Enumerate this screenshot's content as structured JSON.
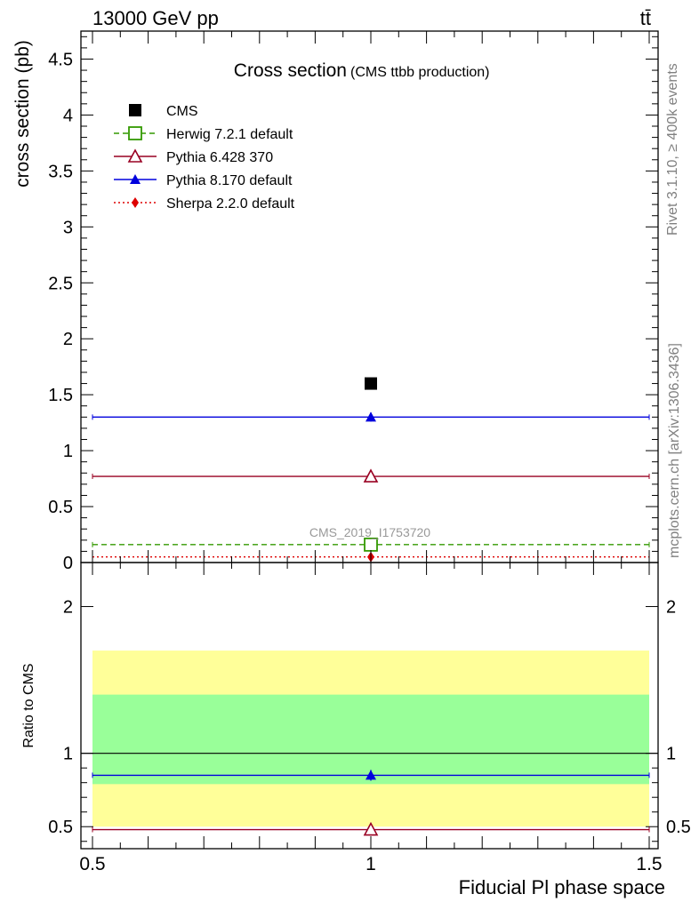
{
  "header": {
    "left_label": "13000 GeV pp",
    "right_label": "tt̄"
  },
  "side_text": {
    "rivet": "Rivet 3.1.10, ≥ 400k events",
    "mcplots": "mcplots.cern.ch [arXiv:1306.3436]"
  },
  "chart_data": [
    {
      "type": "scatter",
      "title": "Cross section",
      "subtitle": "(CMS ttbb production)",
      "ylabel": "cross section (pb)",
      "analysis_label": "CMS_2019_I1753720",
      "xlim": [
        0.5,
        1.5
      ],
      "ylim": [
        0,
        4.75
      ],
      "yticks": [
        0,
        0.5,
        1,
        1.5,
        2,
        2.5,
        3,
        3.5,
        4,
        4.5
      ],
      "ytick_labels": [
        "0",
        "0.5",
        "1",
        "1.5",
        "2",
        "2.5",
        "3",
        "3.5",
        "4",
        "4.5"
      ],
      "legend_position": "top-left",
      "series": [
        {
          "name": "CMS",
          "x": [
            1
          ],
          "y": [
            1.6
          ],
          "marker": "square",
          "color": "#000000"
        },
        {
          "name": "Herwig 7.2.1 default",
          "x": [
            1
          ],
          "y": [
            0.16
          ],
          "marker": "open-square",
          "line": "dashed",
          "color": "#339900"
        },
        {
          "name": "Pythia 6.428 370",
          "x": [
            1
          ],
          "y": [
            0.77
          ],
          "marker": "open-triangle",
          "line": "solid",
          "color": "#990022"
        },
        {
          "name": "Pythia 8.170 default",
          "x": [
            1
          ],
          "y": [
            1.3
          ],
          "marker": "triangle",
          "line": "solid",
          "color": "#0000dd"
        },
        {
          "name": "Sherpa 2.2.0 default",
          "x": [
            1
          ],
          "y": [
            0.05
          ],
          "marker": "diamond",
          "line": "dotted",
          "color": "#dd0000"
        }
      ]
    },
    {
      "type": "scatter",
      "ylabel": "Ratio to CMS",
      "xlabel": "Fiducial Pl phase space",
      "xlim": [
        0.5,
        1.5
      ],
      "ylim": [
        0.35,
        2.3
      ],
      "yticks": [
        0.5,
        1,
        2
      ],
      "ytick_labels": [
        "0.5",
        "1",
        "2"
      ],
      "xticks": [
        0.5,
        1,
        1.5
      ],
      "xtick_labels": [
        "0.5",
        "1",
        "1.5"
      ],
      "bands": [
        {
          "lower": 0.5,
          "upper": 1.7,
          "color": "#ffff99"
        },
        {
          "lower": 0.79,
          "upper": 1.4,
          "color": "#99ff99"
        }
      ],
      "reference_line": 1,
      "series": [
        {
          "name": "Pythia 8.170 default",
          "x": [
            1
          ],
          "y": [
            0.85
          ],
          "marker": "triangle",
          "color": "#0000dd"
        },
        {
          "name": "Pythia 6.428 370",
          "x": [
            1
          ],
          "y": [
            0.48
          ],
          "marker": "open-triangle",
          "color": "#990022"
        }
      ]
    }
  ]
}
